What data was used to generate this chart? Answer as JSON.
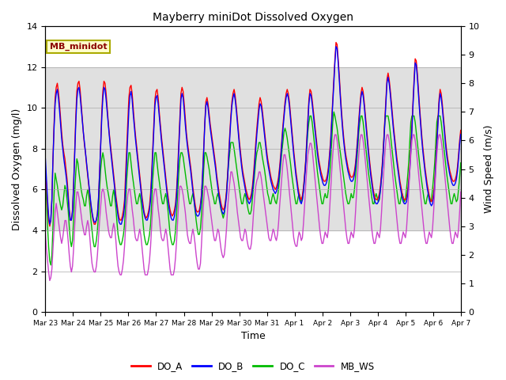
{
  "title": "Mayberry miniDot Dissolved Oxygen",
  "ylabel_left": "Dissolved Oxygen (mg/l)",
  "ylabel_right": "Wind Speed (m/s)",
  "xlabel": "Time",
  "ylim_left": [
    0,
    14
  ],
  "ylim_right": [
    0.0,
    10.0
  ],
  "yticks_left": [
    0,
    2,
    4,
    6,
    8,
    10,
    12,
    14
  ],
  "yticks_right": [
    0.0,
    1.0,
    2.0,
    3.0,
    4.0,
    5.0,
    6.0,
    7.0,
    8.0,
    9.0,
    10.0
  ],
  "shade_ylim": [
    4,
    12
  ],
  "shade_color": "#d3d3d3",
  "background_color": "#ffffff",
  "legend_box_label": "MB_minidot",
  "legend_box_facecolor": "#ffffcc",
  "legend_box_edgecolor": "#aaaa00",
  "series": {
    "DO_A": {
      "color": "#ff0000",
      "lw": 1.0
    },
    "DO_B": {
      "color": "#0000ff",
      "lw": 1.0
    },
    "DO_C": {
      "color": "#00bb00",
      "lw": 1.0
    },
    "MB_WS": {
      "color": "#cc44cc",
      "lw": 1.0
    }
  },
  "xtick_labels": [
    "Mar 23",
    "Mar 24",
    "Mar 25",
    "Mar 26",
    "Mar 27",
    "Mar 28",
    "Mar 29",
    "Mar 30",
    "Mar 31",
    "Apr 1",
    "Apr 2",
    "Apr 3",
    "Apr 4",
    "Apr 5",
    "Apr 6",
    "Apr 7"
  ],
  "xtick_positions": [
    0,
    24,
    48,
    72,
    96,
    120,
    144,
    168,
    192,
    216,
    240,
    264,
    288,
    312,
    336,
    360
  ],
  "total_hours": 360,
  "DO_A": [
    7.0,
    6.2,
    5.2,
    4.5,
    4.2,
    4.5,
    5.5,
    7.5,
    9.2,
    10.5,
    11.0,
    11.2,
    10.8,
    10.2,
    9.5,
    8.8,
    8.2,
    7.8,
    7.5,
    7.0,
    6.5,
    5.8,
    5.0,
    4.5,
    4.5,
    5.0,
    6.2,
    7.8,
    9.5,
    10.8,
    11.2,
    11.3,
    10.9,
    10.2,
    9.5,
    8.8,
    8.2,
    7.8,
    7.2,
    6.7,
    6.2,
    5.7,
    5.2,
    4.8,
    4.5,
    4.3,
    4.3,
    4.5,
    4.8,
    5.5,
    6.8,
    8.2,
    9.8,
    10.8,
    11.3,
    11.2,
    10.7,
    10.0,
    9.3,
    8.7,
    8.2,
    7.7,
    7.2,
    6.7,
    6.2,
    5.7,
    5.3,
    4.9,
    4.6,
    4.5,
    4.5,
    4.7,
    5.0,
    5.5,
    6.8,
    8.0,
    9.3,
    10.5,
    11.0,
    11.1,
    10.7,
    10.0,
    9.3,
    8.7,
    8.2,
    7.7,
    7.2,
    6.7,
    6.2,
    5.7,
    5.3,
    4.9,
    4.7,
    4.6,
    4.7,
    4.9,
    5.2,
    5.8,
    6.8,
    8.0,
    9.2,
    10.4,
    10.8,
    10.9,
    10.5,
    9.8,
    9.2,
    8.6,
    8.1,
    7.6,
    7.1,
    6.6,
    6.1,
    5.7,
    5.3,
    5.0,
    4.8,
    4.7,
    4.8,
    5.0,
    5.3,
    6.0,
    7.0,
    8.3,
    9.5,
    10.7,
    11.0,
    10.8,
    10.2,
    9.5,
    8.8,
    8.3,
    7.9,
    7.5,
    7.1,
    6.6,
    6.1,
    5.7,
    5.3,
    5.0,
    4.9,
    4.9,
    5.0,
    5.3,
    5.8,
    6.8,
    8.0,
    9.3,
    10.3,
    10.5,
    10.2,
    9.7,
    9.2,
    8.8,
    8.4,
    8.0,
    7.6,
    7.2,
    6.7,
    6.3,
    5.9,
    5.6,
    5.3,
    5.1,
    5.0,
    5.1,
    5.4,
    5.9,
    6.7,
    7.7,
    8.7,
    9.6,
    10.3,
    10.7,
    10.9,
    10.6,
    10.1,
    9.5,
    8.9,
    8.3,
    7.8,
    7.3,
    6.9,
    6.6,
    6.3,
    6.0,
    5.8,
    5.6,
    5.5,
    5.6,
    5.8,
    6.2,
    6.8,
    7.5,
    8.3,
    9.0,
    9.6,
    10.2,
    10.5,
    10.3,
    9.9,
    9.4,
    8.9,
    8.4,
    7.9,
    7.5,
    7.2,
    6.9,
    6.6,
    6.4,
    6.2,
    6.1,
    6.0,
    6.1,
    6.3,
    6.6,
    7.1,
    7.7,
    8.4,
    9.1,
    9.7,
    10.3,
    10.7,
    10.9,
    10.7,
    10.3,
    9.7,
    9.1,
    8.5,
    7.9,
    7.4,
    6.9,
    6.5,
    6.1,
    5.8,
    5.6,
    5.5,
    5.7,
    6.1,
    6.7,
    7.4,
    8.4,
    9.4,
    10.4,
    10.9,
    10.8,
    10.4,
    9.9,
    9.4,
    8.9,
    8.4,
    7.9,
    7.5,
    7.2,
    6.9,
    6.7,
    6.5,
    6.4,
    6.4,
    6.5,
    6.7,
    7.1,
    7.7,
    8.4,
    9.4,
    10.4,
    11.4,
    12.4,
    13.2,
    13.1,
    12.4,
    11.6,
    10.7,
    9.9,
    9.2,
    8.6,
    8.1,
    7.7,
    7.4,
    7.1,
    6.9,
    6.7,
    6.6,
    6.6,
    6.7,
    6.9,
    7.3,
    7.9,
    8.6,
    9.4,
    10.1,
    10.7,
    11.0,
    10.8,
    10.3,
    9.7,
    9.1,
    8.5,
    7.9,
    7.4,
    6.9,
    6.5,
    6.1,
    5.8,
    5.6,
    5.5,
    5.5,
    5.6,
    5.8,
    6.2,
    6.8,
    7.5,
    8.4,
    9.4,
    10.4,
    11.4,
    11.7,
    11.4,
    10.9,
    10.3,
    9.7,
    9.1,
    8.6,
    8.1,
    7.6,
    7.2,
    6.8,
    6.4,
    6.1,
    5.8,
    5.6,
    5.5,
    5.5,
    5.6,
    5.9,
    6.4,
    7.1,
    8.1,
    9.1,
    10.3,
    11.4,
    12.4,
    12.3,
    11.7,
    10.9,
    10.1,
    9.4,
    8.7,
    8.1,
    7.6,
    7.1,
    6.7,
    6.3,
    6.0,
    5.7,
    5.5,
    5.4,
    5.5,
    5.8,
    6.3,
    7.4,
    8.4,
    9.4,
    10.4,
    10.9,
    10.7,
    10.2,
    9.6,
    9.0,
    8.4,
    7.9,
    7.5,
    7.2,
    6.9,
    6.7,
    6.5,
    6.4,
    6.4,
    6.5,
    6.7,
    7.1,
    7.7,
    8.4,
    8.9
  ],
  "DO_B": [
    7.5,
    6.5,
    5.5,
    4.7,
    4.3,
    4.5,
    5.5,
    7.5,
    9.0,
    10.2,
    10.7,
    10.9,
    10.5,
    9.9,
    9.2,
    8.5,
    8.0,
    7.5,
    7.1,
    6.7,
    6.2,
    5.6,
    4.9,
    4.5,
    4.5,
    4.9,
    6.1,
    7.7,
    9.2,
    10.4,
    10.9,
    11.0,
    10.6,
    10.0,
    9.4,
    8.8,
    8.3,
    7.8,
    7.3,
    6.8,
    6.3,
    5.8,
    5.3,
    4.9,
    4.6,
    4.4,
    4.4,
    4.5,
    4.8,
    5.6,
    6.8,
    8.1,
    9.5,
    10.5,
    11.0,
    10.9,
    10.4,
    9.8,
    9.2,
    8.6,
    8.0,
    7.5,
    7.0,
    6.5,
    6.0,
    5.5,
    5.1,
    4.7,
    4.4,
    4.3,
    4.3,
    4.5,
    4.7,
    5.2,
    6.2,
    7.5,
    8.7,
    9.9,
    10.6,
    10.8,
    10.4,
    9.7,
    9.1,
    8.5,
    8.0,
    7.5,
    7.0,
    6.5,
    6.0,
    5.5,
    5.1,
    4.8,
    4.6,
    4.5,
    4.5,
    4.7,
    5.0,
    5.5,
    6.5,
    7.7,
    8.9,
    10.1,
    10.5,
    10.6,
    10.2,
    9.6,
    9.0,
    8.4,
    7.9,
    7.4,
    6.9,
    6.4,
    5.9,
    5.5,
    5.1,
    4.8,
    4.6,
    4.5,
    4.5,
    4.7,
    5.1,
    5.7,
    6.7,
    8.0,
    9.2,
    10.4,
    10.7,
    10.5,
    9.9,
    9.2,
    8.6,
    8.1,
    7.7,
    7.3,
    6.9,
    6.4,
    5.9,
    5.5,
    5.1,
    4.8,
    4.7,
    4.7,
    4.8,
    5.1,
    5.7,
    6.7,
    7.9,
    9.2,
    10.1,
    10.3,
    10.0,
    9.5,
    9.0,
    8.6,
    8.2,
    7.8,
    7.4,
    7.0,
    6.5,
    6.1,
    5.7,
    5.4,
    5.1,
    4.9,
    4.8,
    4.9,
    5.2,
    5.7,
    6.5,
    7.5,
    8.5,
    9.4,
    10.1,
    10.5,
    10.7,
    10.4,
    9.9,
    9.3,
    8.7,
    8.1,
    7.6,
    7.1,
    6.7,
    6.4,
    6.1,
    5.8,
    5.6,
    5.4,
    5.3,
    5.4,
    5.6,
    6.0,
    6.5,
    7.2,
    8.0,
    8.7,
    9.3,
    9.9,
    10.2,
    10.1,
    9.7,
    9.2,
    8.7,
    8.2,
    7.7,
    7.3,
    7.0,
    6.7,
    6.4,
    6.2,
    6.0,
    5.9,
    5.8,
    5.9,
    6.1,
    6.4,
    6.9,
    7.5,
    8.2,
    8.9,
    9.5,
    10.1,
    10.5,
    10.7,
    10.5,
    10.1,
    9.5,
    8.9,
    8.3,
    7.7,
    7.2,
    6.7,
    6.3,
    5.9,
    5.6,
    5.4,
    5.3,
    5.5,
    5.9,
    6.5,
    7.2,
    8.2,
    9.2,
    10.2,
    10.7,
    10.6,
    10.2,
    9.7,
    9.2,
    8.7,
    8.2,
    7.7,
    7.3,
    7.0,
    6.7,
    6.5,
    6.3,
    6.2,
    6.2,
    6.3,
    6.5,
    6.9,
    7.5,
    8.2,
    9.2,
    10.2,
    11.2,
    12.2,
    13.0,
    12.9,
    12.2,
    11.4,
    10.5,
    9.7,
    9.0,
    8.4,
    7.9,
    7.5,
    7.2,
    6.9,
    6.7,
    6.5,
    6.4,
    6.4,
    6.5,
    6.7,
    7.1,
    7.7,
    8.4,
    9.2,
    9.9,
    10.5,
    10.8,
    10.6,
    10.1,
    9.5,
    8.9,
    8.3,
    7.7,
    7.2,
    6.7,
    6.3,
    5.9,
    5.6,
    5.4,
    5.3,
    5.3,
    5.4,
    5.6,
    6.0,
    6.6,
    7.3,
    8.2,
    9.2,
    10.2,
    11.2,
    11.5,
    11.2,
    10.7,
    10.1,
    9.5,
    8.9,
    8.4,
    7.9,
    7.4,
    7.0,
    6.6,
    6.2,
    5.9,
    5.6,
    5.4,
    5.3,
    5.3,
    5.4,
    5.7,
    6.2,
    6.9,
    7.9,
    8.9,
    10.1,
    11.2,
    12.2,
    12.1,
    11.5,
    10.7,
    9.9,
    9.2,
    8.5,
    7.9,
    7.4,
    6.9,
    6.5,
    6.1,
    5.8,
    5.5,
    5.3,
    5.2,
    5.3,
    5.6,
    6.1,
    7.2,
    8.2,
    9.2,
    10.2,
    10.7,
    10.5,
    10.0,
    9.4,
    8.8,
    8.2,
    7.7,
    7.3,
    7.0,
    6.7,
    6.5,
    6.3,
    6.2,
    6.2,
    6.3,
    6.5,
    6.9,
    7.5,
    8.2,
    8.7
  ],
  "DO_C": [
    6.5,
    5.5,
    4.2,
    3.2,
    2.5,
    2.3,
    2.8,
    4.2,
    5.8,
    6.8,
    6.5,
    6.2,
    5.8,
    5.5,
    5.2,
    5.0,
    5.2,
    5.7,
    6.2,
    6.0,
    5.5,
    5.0,
    4.2,
    3.5,
    3.2,
    3.5,
    4.5,
    5.8,
    6.8,
    7.5,
    7.3,
    6.8,
    6.4,
    6.0,
    5.7,
    5.5,
    5.2,
    5.2,
    5.7,
    6.0,
    5.7,
    5.2,
    4.5,
    4.0,
    3.5,
    3.2,
    3.2,
    3.5,
    4.0,
    4.8,
    6.0,
    7.0,
    7.5,
    7.8,
    7.5,
    7.0,
    6.5,
    6.1,
    5.8,
    5.5,
    5.2,
    5.2,
    5.7,
    6.0,
    5.6,
    5.1,
    4.4,
    3.8,
    3.5,
    3.3,
    3.3,
    3.5,
    3.8,
    4.3,
    5.3,
    6.5,
    7.2,
    7.8,
    7.8,
    7.3,
    6.8,
    6.4,
    6.0,
    5.6,
    5.3,
    5.3,
    5.6,
    5.8,
    5.5,
    5.0,
    4.4,
    3.8,
    3.5,
    3.3,
    3.3,
    3.5,
    3.8,
    4.3,
    5.3,
    6.5,
    7.2,
    7.8,
    7.8,
    7.3,
    6.8,
    6.4,
    6.0,
    5.6,
    5.3,
    5.3,
    5.6,
    5.8,
    5.5,
    5.0,
    4.4,
    3.8,
    3.5,
    3.3,
    3.3,
    3.5,
    4.0,
    4.8,
    5.8,
    6.8,
    7.5,
    7.8,
    7.8,
    7.6,
    7.2,
    6.8,
    6.4,
    6.0,
    5.6,
    5.3,
    5.3,
    5.6,
    5.8,
    5.5,
    5.0,
    4.5,
    4.1,
    3.8,
    3.8,
    4.1,
    4.8,
    5.8,
    7.0,
    7.8,
    7.8,
    7.6,
    7.3,
    7.0,
    6.6,
    6.2,
    5.8,
    5.6,
    5.3,
    5.3,
    5.6,
    5.8,
    5.6,
    5.3,
    5.0,
    4.8,
    4.6,
    4.8,
    5.3,
    5.8,
    6.6,
    7.3,
    7.8,
    8.3,
    8.3,
    8.3,
    8.0,
    7.6,
    7.2,
    6.8,
    6.4,
    6.0,
    5.6,
    5.3,
    5.3,
    5.6,
    5.8,
    5.6,
    5.3,
    5.0,
    4.8,
    4.8,
    5.0,
    5.6,
    6.2,
    6.8,
    7.4,
    7.8,
    8.0,
    8.3,
    8.3,
    8.0,
    7.6,
    7.3,
    7.0,
    6.6,
    6.2,
    5.8,
    5.6,
    5.3,
    5.3,
    5.6,
    5.8,
    5.6,
    5.4,
    5.3,
    5.6,
    6.0,
    6.6,
    7.2,
    7.8,
    8.3,
    8.8,
    9.0,
    8.8,
    8.5,
    8.1,
    7.7,
    7.3,
    6.8,
    6.4,
    6.0,
    5.6,
    5.3,
    5.3,
    5.6,
    5.8,
    5.6,
    5.4,
    5.5,
    6.0,
    6.6,
    7.3,
    8.0,
    8.8,
    9.3,
    9.6,
    9.6,
    9.3,
    8.8,
    8.3,
    7.8,
    7.3,
    6.8,
    6.4,
    6.0,
    5.6,
    5.3,
    5.3,
    5.6,
    5.8,
    5.6,
    5.6,
    6.0,
    6.6,
    7.3,
    8.3,
    9.3,
    9.8,
    9.6,
    9.3,
    9.0,
    8.6,
    8.2,
    7.8,
    7.4,
    7.0,
    6.6,
    6.2,
    5.8,
    5.5,
    5.3,
    5.3,
    5.5,
    5.8,
    5.6,
    5.6,
    6.0,
    6.6,
    7.3,
    8.0,
    8.8,
    9.3,
    9.6,
    9.6,
    9.3,
    8.8,
    8.3,
    7.8,
    7.3,
    6.8,
    6.4,
    6.0,
    5.6,
    5.3,
    5.3,
    5.6,
    5.8,
    5.6,
    5.4,
    5.5,
    6.0,
    6.6,
    7.3,
    8.3,
    9.3,
    9.6,
    9.6,
    9.6,
    9.3,
    8.8,
    8.3,
    7.8,
    7.3,
    6.8,
    6.4,
    6.0,
    5.6,
    5.3,
    5.3,
    5.6,
    5.8,
    5.6,
    5.4,
    5.5,
    6.0,
    6.6,
    7.3,
    8.3,
    9.3,
    9.6,
    9.6,
    9.6,
    9.3,
    8.8,
    8.3,
    7.8,
    7.3,
    6.8,
    6.4,
    6.0,
    5.6,
    5.3,
    5.3,
    5.6,
    5.8,
    5.6,
    5.4,
    5.5,
    6.0,
    6.6,
    7.3,
    8.3,
    9.3,
    9.6,
    9.6,
    9.6,
    9.3,
    8.8,
    8.3,
    7.8,
    7.3,
    6.8,
    6.4,
    6.0,
    5.6,
    5.3,
    5.3,
    5.6,
    5.8,
    5.6,
    5.4,
    5.5,
    6.0,
    6.6,
    7.3
  ],
  "MB_WS": [
    2.8,
    2.2,
    1.8,
    1.4,
    1.1,
    1.2,
    1.5,
    2.2,
    2.9,
    3.5,
    3.8,
    3.5,
    3.2,
    2.9,
    2.6,
    2.4,
    2.6,
    2.9,
    3.2,
    3.2,
    2.9,
    2.5,
    2.0,
    1.6,
    1.4,
    1.6,
    2.2,
    3.0,
    3.7,
    4.2,
    4.2,
    4.0,
    3.7,
    3.4,
    3.1,
    2.9,
    2.7,
    2.7,
    3.0,
    3.2,
    3.0,
    2.6,
    2.1,
    1.7,
    1.5,
    1.4,
    1.4,
    1.6,
    2.0,
    2.6,
    3.2,
    3.7,
    4.2,
    4.3,
    4.2,
    3.9,
    3.5,
    3.2,
    2.9,
    2.7,
    2.6,
    2.6,
    2.9,
    3.1,
    2.9,
    2.5,
    2.0,
    1.6,
    1.4,
    1.3,
    1.3,
    1.5,
    1.8,
    2.3,
    3.0,
    3.7,
    4.1,
    4.3,
    4.3,
    4.0,
    3.6,
    3.3,
    2.9,
    2.6,
    2.5,
    2.5,
    2.7,
    2.9,
    2.7,
    2.3,
    1.9,
    1.5,
    1.3,
    1.3,
    1.3,
    1.5,
    1.8,
    2.3,
    3.0,
    3.7,
    4.1,
    4.3,
    4.3,
    4.0,
    3.6,
    3.3,
    2.9,
    2.6,
    2.5,
    2.5,
    2.7,
    2.9,
    2.7,
    2.3,
    1.9,
    1.5,
    1.3,
    1.3,
    1.3,
    1.5,
    1.9,
    2.5,
    3.2,
    3.9,
    4.4,
    4.4,
    4.3,
    4.1,
    3.8,
    3.5,
    3.1,
    2.7,
    2.5,
    2.4,
    2.4,
    2.7,
    2.9,
    2.7,
    2.4,
    2.0,
    1.7,
    1.5,
    1.5,
    1.7,
    2.4,
    3.2,
    3.9,
    4.4,
    4.4,
    4.3,
    4.1,
    3.9,
    3.6,
    3.3,
    3.0,
    2.7,
    2.5,
    2.5,
    2.7,
    2.9,
    2.8,
    2.5,
    2.2,
    2.0,
    1.9,
    2.0,
    2.4,
    2.9,
    3.6,
    4.1,
    4.5,
    4.9,
    4.9,
    4.7,
    4.5,
    4.2,
    3.9,
    3.5,
    3.2,
    2.9,
    2.6,
    2.5,
    2.5,
    2.7,
    2.9,
    2.8,
    2.5,
    2.3,
    2.2,
    2.2,
    2.4,
    2.9,
    3.5,
    4.0,
    4.4,
    4.6,
    4.7,
    4.9,
    4.9,
    4.7,
    4.4,
    4.1,
    3.8,
    3.5,
    3.2,
    2.9,
    2.6,
    2.5,
    2.5,
    2.7,
    2.9,
    2.8,
    2.6,
    2.5,
    2.7,
    3.1,
    3.7,
    4.2,
    4.7,
    5.2,
    5.5,
    5.5,
    5.3,
    5.0,
    4.6,
    4.2,
    3.8,
    3.4,
    3.0,
    2.6,
    2.4,
    2.3,
    2.3,
    2.6,
    2.8,
    2.7,
    2.5,
    2.6,
    3.1,
    3.7,
    4.4,
    5.0,
    5.5,
    5.7,
    5.9,
    5.9,
    5.7,
    5.3,
    4.9,
    4.5,
    4.1,
    3.7,
    3.3,
    2.9,
    2.6,
    2.4,
    2.4,
    2.6,
    2.8,
    2.7,
    2.6,
    2.9,
    3.5,
    4.2,
    4.9,
    5.5,
    6.0,
    6.2,
    6.2,
    6.0,
    5.7,
    5.3,
    4.9,
    4.5,
    4.1,
    3.7,
    3.3,
    2.9,
    2.6,
    2.4,
    2.4,
    2.6,
    2.8,
    2.7,
    2.6,
    2.9,
    3.5,
    4.2,
    4.9,
    5.5,
    6.0,
    6.2,
    6.2,
    6.0,
    5.7,
    5.3,
    4.9,
    4.5,
    4.1,
    3.7,
    3.3,
    2.9,
    2.6,
    2.4,
    2.4,
    2.6,
    2.8,
    2.7,
    2.6,
    2.9,
    3.5,
    4.2,
    4.9,
    5.5,
    6.0,
    6.2,
    6.2,
    6.0,
    5.7,
    5.3,
    4.9,
    4.5,
    4.1,
    3.7,
    3.3,
    2.9,
    2.6,
    2.4,
    2.4,
    2.6,
    2.8,
    2.7,
    2.6,
    2.9,
    3.5,
    4.2,
    4.9,
    5.5,
    6.0,
    6.2,
    6.2,
    6.0,
    5.7,
    5.3,
    4.9,
    4.5,
    4.1,
    3.7,
    3.3,
    2.9,
    2.6,
    2.4,
    2.4,
    2.6,
    2.8,
    2.7,
    2.6,
    2.9,
    3.5,
    4.2,
    4.9,
    5.5,
    6.0,
    6.2,
    6.2,
    6.0,
    5.7,
    5.3,
    4.9,
    4.5,
    4.1,
    3.7,
    3.3,
    2.9,
    2.6,
    2.4,
    2.4,
    2.6,
    2.8,
    2.7,
    2.6,
    2.9,
    3.5,
    4.2
  ]
}
